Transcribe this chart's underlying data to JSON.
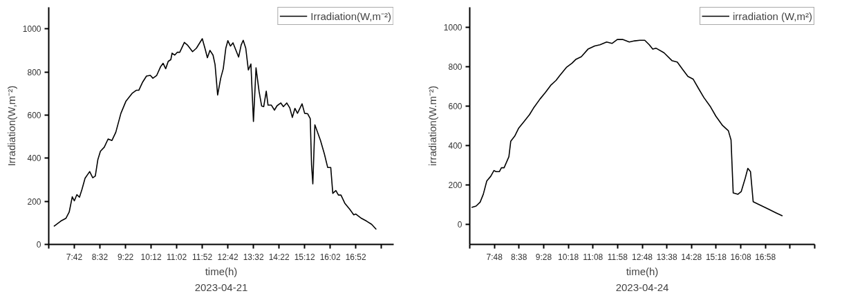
{
  "chart_data": [
    {
      "type": "line",
      "xlabel": "time(h)",
      "ylabel": "Irradiation(W,m⁻²)",
      "annotations": [
        "2023-04-21"
      ],
      "legend": "top right",
      "grid": false,
      "marker": "none",
      "line_style": "solid",
      "xlim": [
        6.8667,
        18.1
      ],
      "ylim": [
        0,
        1100
      ],
      "xticks": [
        {
          "value": 6.8667,
          "label": null
        },
        {
          "value": 7.7,
          "label": "7:42"
        },
        {
          "value": 8.5333,
          "label": "8:32"
        },
        {
          "value": 9.3667,
          "label": "9:22"
        },
        {
          "value": 10.2,
          "label": "10:12"
        },
        {
          "value": 11.0333,
          "label": "11:02"
        },
        {
          "value": 11.8667,
          "label": "11:52"
        },
        {
          "value": 12.7,
          "label": "12:42"
        },
        {
          "value": 13.5333,
          "label": "13:32"
        },
        {
          "value": 14.3667,
          "label": "14:22"
        },
        {
          "value": 15.2,
          "label": "15:12"
        },
        {
          "value": 16.0333,
          "label": "16:02"
        },
        {
          "value": 16.8667,
          "label": "16:52"
        },
        {
          "value": 17.7,
          "label": null
        }
      ],
      "yticks": [
        0,
        200,
        400,
        600,
        800,
        1000
      ],
      "series": [
        {
          "name": "Irradiation(W,m⁻²)",
          "color": "#000000",
          "x": [
            7.033,
            7.258,
            7.425,
            7.533,
            7.633,
            7.7,
            7.783,
            7.867,
            7.95,
            8.05,
            8.2,
            8.3,
            8.383,
            8.467,
            8.55,
            8.675,
            8.8,
            8.925,
            9.05,
            9.217,
            9.383,
            9.592,
            9.717,
            9.8,
            9.925,
            10.05,
            10.175,
            10.258,
            10.383,
            10.508,
            10.592,
            10.675,
            10.758,
            10.842,
            10.883,
            10.967,
            11.05,
            11.133,
            11.283,
            11.383,
            11.55,
            11.675,
            11.867,
            11.967,
            12.033,
            12.117,
            12.217,
            12.283,
            12.367,
            12.467,
            12.55,
            12.633,
            12.7,
            12.783,
            12.867,
            13.05,
            13.133,
            13.2,
            13.283,
            13.367,
            13.45,
            13.533,
            13.617,
            13.717,
            13.8,
            13.867,
            13.95,
            14.008,
            14.117,
            14.217,
            14.3,
            14.425,
            14.508,
            14.617,
            14.717,
            14.8,
            14.883,
            14.967,
            15.117,
            15.2,
            15.3,
            15.383,
            15.425,
            15.467,
            15.533,
            15.717,
            15.842,
            15.95,
            16.05,
            16.117,
            16.217,
            16.3,
            16.383,
            16.508,
            16.675,
            16.8,
            16.867,
            17.05,
            17.217,
            17.383,
            17.533
          ],
          "values": [
            84,
            108,
            121,
            150,
            221,
            202,
            231,
            219,
            256,
            307,
            338,
            309,
            317,
            394,
            432,
            451,
            489,
            482,
            520,
            608,
            665,
            702,
            715,
            715,
            753,
            781,
            784,
            771,
            784,
            824,
            840,
            815,
            849,
            857,
            887,
            878,
            891,
            891,
            937,
            925,
            894,
            910,
            954,
            903,
            866,
            900,
            878,
            834,
            693,
            771,
            815,
            910,
            945,
            920,
            935,
            869,
            925,
            947,
            910,
            809,
            837,
            570,
            819,
            709,
            642,
            639,
            711,
            646,
            646,
            623,
            643,
            656,
            639,
            656,
            633,
            589,
            631,
            608,
            652,
            608,
            606,
            583,
            369,
            281,
            555,
            482,
            420,
            357,
            357,
            237,
            250,
            229,
            229,
            191,
            162,
            137,
            141,
            121,
            108,
            93,
            70
          ]
        }
      ]
    },
    {
      "type": "line",
      "xlabel": "time(h)",
      "ylabel": "irradiation(W.m⁻²)",
      "annotations": [
        "2023-04-24"
      ],
      "legend": "top right",
      "grid": false,
      "marker": "none",
      "line_style": "solid",
      "xlim": [
        6.9667,
        18.6333
      ],
      "ylim": [
        -100,
        1100
      ],
      "xticks": [
        {
          "value": 6.9667,
          "label": null
        },
        {
          "value": 7.8,
          "label": "7:48"
        },
        {
          "value": 8.6333,
          "label": "8:38"
        },
        {
          "value": 9.4667,
          "label": "9:28"
        },
        {
          "value": 10.3,
          "label": "10:18"
        },
        {
          "value": 11.1333,
          "label": "11:08"
        },
        {
          "value": 11.9667,
          "label": "11:58"
        },
        {
          "value": 12.8,
          "label": "12:48"
        },
        {
          "value": 13.6333,
          "label": "13:38"
        },
        {
          "value": 14.4667,
          "label": "14:28"
        },
        {
          "value": 15.3,
          "label": "15:18"
        },
        {
          "value": 16.1333,
          "label": "16:08"
        },
        {
          "value": 16.9667,
          "label": "16:58"
        },
        {
          "value": 17.8,
          "label": null
        },
        {
          "value": 18.6333,
          "label": null
        }
      ],
      "yticks": [
        0,
        200,
        400,
        600,
        800,
        1000
      ],
      "series": [
        {
          "name": "irradiation (W,m²)",
          "color": "#000000",
          "x": [
            7.03,
            7.183,
            7.318,
            7.426,
            7.543,
            7.678,
            7.786,
            7.858,
            7.967,
            8.039,
            8.129,
            8.291,
            8.354,
            8.489,
            8.624,
            8.804,
            8.985,
            9.12,
            9.345,
            9.525,
            9.705,
            9.886,
            10.021,
            10.246,
            10.426,
            10.561,
            10.741,
            10.966,
            11.192,
            11.372,
            11.597,
            11.777,
            11.958,
            12.138,
            12.363,
            12.543,
            12.723,
            12.886,
            13.039,
            13.156,
            13.264,
            13.535,
            13.805,
            13.985,
            14.165,
            14.345,
            14.525,
            14.705,
            14.886,
            15.111,
            15.291,
            15.516,
            15.714,
            15.804,
            15.877,
            16.039,
            16.147,
            16.282,
            16.372,
            16.462,
            16.553,
            16.733,
            17.048,
            17.318,
            17.544
          ],
          "values": [
            87,
            94,
            114,
            154,
            221,
            245,
            274,
            268,
            268,
            288,
            288,
            344,
            422,
            448,
            489,
            522,
            556,
            589,
            636,
            669,
            705,
            730,
            756,
            797,
            817,
            837,
            850,
            888,
            904,
            910,
            924,
            917,
            937,
            937,
            924,
            930,
            933,
            933,
            910,
            888,
            893,
            870,
            830,
            823,
            786,
            750,
            736,
            689,
            643,
            596,
            549,
            502,
            475,
            428,
            161,
            154,
            167,
            234,
            285,
            268,
            116,
            103,
            80,
            60,
            44
          ]
        }
      ]
    }
  ]
}
